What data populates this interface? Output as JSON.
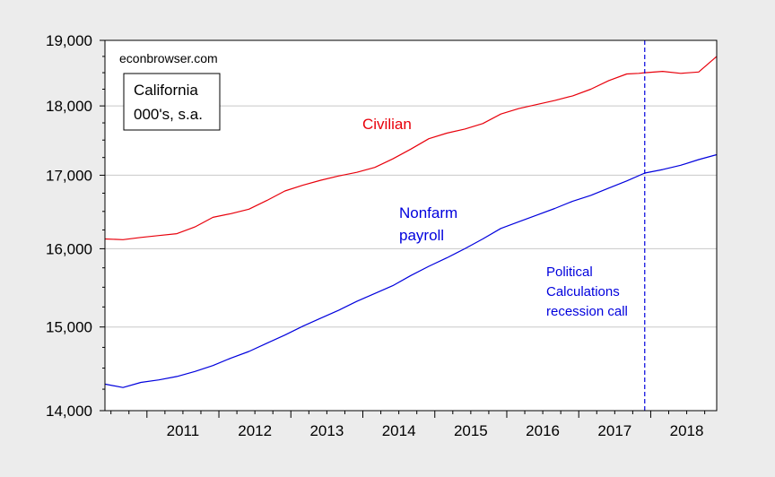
{
  "chart_data": {
    "type": "line",
    "watermark": "econbrowser.com",
    "legend_box": {
      "line1": "California",
      "line2": "000's, s.a."
    },
    "x_ticks": [
      "2011",
      "2012",
      "2013",
      "2014",
      "2015",
      "2016",
      "2017",
      "2018"
    ],
    "y_ticks": [
      "14,000",
      "15,000",
      "16,000",
      "17,000",
      "18,000",
      "19,000"
    ],
    "y_scale": "log",
    "ylim": [
      14000,
      19000
    ],
    "xlim": [
      "2010-06",
      "2018-12"
    ],
    "grid": "horizontal",
    "series": [
      {
        "name": "Civilian",
        "color": "#e8000b",
        "points": [
          [
            "2010-06",
            16130
          ],
          [
            "2010-09",
            16120
          ],
          [
            "2010-12",
            16150
          ],
          [
            "2011-03",
            16175
          ],
          [
            "2011-06",
            16200
          ],
          [
            "2011-09",
            16290
          ],
          [
            "2011-12",
            16420
          ],
          [
            "2012-03",
            16470
          ],
          [
            "2012-06",
            16530
          ],
          [
            "2012-09",
            16650
          ],
          [
            "2012-12",
            16780
          ],
          [
            "2013-03",
            16860
          ],
          [
            "2013-06",
            16930
          ],
          [
            "2013-09",
            16990
          ],
          [
            "2013-12",
            17040
          ],
          [
            "2014-03",
            17110
          ],
          [
            "2014-06",
            17230
          ],
          [
            "2014-09",
            17370
          ],
          [
            "2014-12",
            17520
          ],
          [
            "2015-03",
            17600
          ],
          [
            "2015-06",
            17660
          ],
          [
            "2015-09",
            17740
          ],
          [
            "2015-12",
            17880
          ],
          [
            "2016-03",
            17960
          ],
          [
            "2016-06",
            18020
          ],
          [
            "2016-09",
            18080
          ],
          [
            "2016-12",
            18150
          ],
          [
            "2017-03",
            18250
          ],
          [
            "2017-06",
            18380
          ],
          [
            "2017-09",
            18480
          ],
          [
            "2017-11",
            18490
          ],
          [
            "2017-12",
            18500
          ],
          [
            "2018-03",
            18520
          ],
          [
            "2018-06",
            18490
          ],
          [
            "2018-09",
            18510
          ],
          [
            "2018-12",
            18750
          ]
        ]
      },
      {
        "name": "Nonfarm payroll",
        "color": "#0000dd",
        "points": [
          [
            "2010-06",
            14310
          ],
          [
            "2010-09",
            14270
          ],
          [
            "2010-12",
            14330
          ],
          [
            "2011-03",
            14360
          ],
          [
            "2011-06",
            14400
          ],
          [
            "2011-09",
            14460
          ],
          [
            "2011-12",
            14530
          ],
          [
            "2012-03",
            14620
          ],
          [
            "2012-06",
            14700
          ],
          [
            "2012-09",
            14800
          ],
          [
            "2012-12",
            14900
          ],
          [
            "2013-03",
            15010
          ],
          [
            "2013-06",
            15110
          ],
          [
            "2013-09",
            15210
          ],
          [
            "2013-12",
            15320
          ],
          [
            "2014-03",
            15420
          ],
          [
            "2014-06",
            15520
          ],
          [
            "2014-09",
            15650
          ],
          [
            "2014-12",
            15770
          ],
          [
            "2015-03",
            15880
          ],
          [
            "2015-06",
            16000
          ],
          [
            "2015-09",
            16130
          ],
          [
            "2015-12",
            16270
          ],
          [
            "2016-03",
            16360
          ],
          [
            "2016-06",
            16450
          ],
          [
            "2016-09",
            16540
          ],
          [
            "2016-12",
            16640
          ],
          [
            "2017-03",
            16720
          ],
          [
            "2017-06",
            16820
          ],
          [
            "2017-09",
            16920
          ],
          [
            "2017-12",
            17030
          ],
          [
            "2018-03",
            17080
          ],
          [
            "2018-06",
            17140
          ],
          [
            "2018-09",
            17220
          ],
          [
            "2018-12",
            17290
          ]
        ]
      }
    ],
    "labels": {
      "civilian": "Civilian",
      "nonfarm_line1": "Nonfarm",
      "nonfarm_line2": "payroll"
    },
    "recession_marker": {
      "date": "2017-12",
      "color": "#0000dd",
      "text_lines": [
        "Political",
        "Calculations",
        "recession call"
      ]
    }
  }
}
